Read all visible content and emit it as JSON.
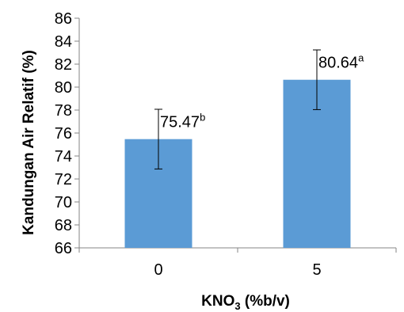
{
  "chart_data": {
    "type": "bar",
    "categories": [
      "0",
      "5"
    ],
    "values": [
      75.47,
      80.64
    ],
    "errors": [
      2.6,
      2.6
    ],
    "data_labels": [
      {
        "value": "75.47",
        "sup": "b"
      },
      {
        "value": "80.64",
        "sup": "a"
      }
    ],
    "xlabel": {
      "main": "KNO",
      "sub": "3",
      "rest": " (%b/v)"
    },
    "ylabel": "Kandungan Air Relatif (%)",
    "ylim": [
      66,
      86
    ],
    "yticks": [
      66,
      68,
      70,
      72,
      74,
      76,
      78,
      80,
      82,
      84,
      86
    ],
    "bar_color": "#5b9bd5",
    "grid": false,
    "legend": "none"
  }
}
